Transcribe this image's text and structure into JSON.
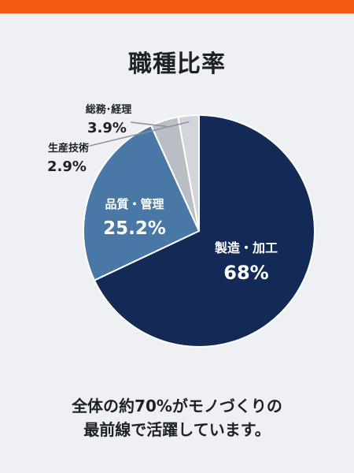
{
  "colors": {
    "top_bar": "#f25a12",
    "background": "#eef0f3",
    "slice_main": "#132a57",
    "slice_quality": "#4a78a6",
    "slice_admin": "#b9bec5",
    "slice_tech": "#d2d5da"
  },
  "chart_data": {
    "type": "pie",
    "title": "職種比率",
    "unit": "%",
    "slices": [
      {
        "label": "製造・加工",
        "value": 68,
        "display": "68%"
      },
      {
        "label": "品質・管理",
        "value": 25.2,
        "display": "25.2%"
      },
      {
        "label": "総務･経理",
        "value": 3.9,
        "display": "3.9%"
      },
      {
        "label": "生産技術",
        "value": 2.9,
        "display": "2.9%"
      }
    ]
  },
  "caption": {
    "line1": "全体の約70%がモノづくりの",
    "line2": "最前線で活躍しています。"
  }
}
